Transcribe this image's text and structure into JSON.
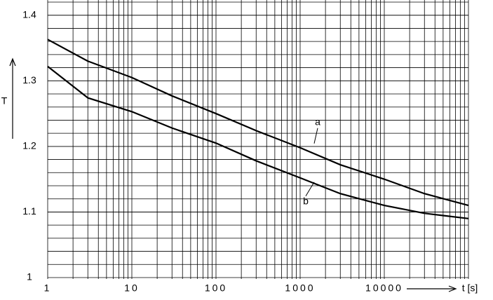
{
  "chart_data": {
    "type": "line",
    "log_x": true,
    "grid": true,
    "ylabel": "T",
    "xlabel": "t [s]",
    "x": [
      1,
      3,
      10,
      30,
      100,
      300,
      1000,
      3000,
      10000,
      30000,
      100000
    ],
    "series": [
      {
        "name": "a",
        "color": "#000000",
        "values": [
          1.363,
          1.33,
          1.305,
          1.277,
          1.25,
          1.224,
          1.198,
          1.172,
          1.15,
          1.128,
          1.11
        ]
      },
      {
        "name": "b",
        "color": "#000000",
        "values": [
          1.322,
          1.274,
          1.253,
          1.228,
          1.205,
          1.178,
          1.152,
          1.128,
          1.11,
          1.098,
          1.09
        ]
      }
    ],
    "xlim": [
      1,
      100000
    ],
    "xticks": [
      1,
      10,
      100,
      1000,
      10000
    ],
    "ylim": [
      1,
      1.42
    ],
    "yticks": [
      1,
      1.1,
      1.2,
      1.3,
      1.4
    ]
  }
}
